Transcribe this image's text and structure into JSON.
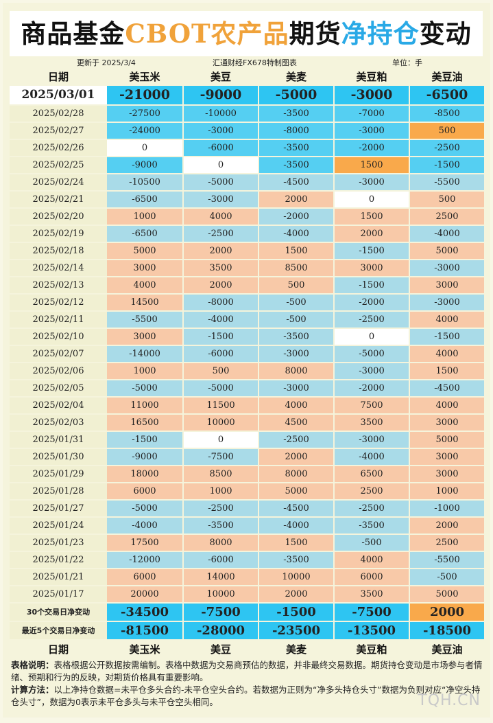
{
  "title": {
    "part1": "商品基金",
    "part2": "CBOT农产品",
    "part3": "期货",
    "part4": "净持仓",
    "part5": "变动"
  },
  "meta": {
    "updated": "更新于 2025/3/4",
    "source": "汇通财经FX678特制图表",
    "unit": "单位：手"
  },
  "header": {
    "date": "日期",
    "cols": [
      "美玉米",
      "美豆",
      "美麦",
      "美豆粕",
      "美豆油"
    ]
  },
  "colors": {
    "pos": "#f8c9a8",
    "neg": "#a9dbe8",
    "zero": "#ffffff",
    "neg_top": "#55cff2",
    "pos_top": "#f9a94b",
    "top_row": "#2ec5f2"
  },
  "rows": [
    {
      "date": "2025/03/01",
      "values": [
        "-21000",
        "-9000",
        "-5000",
        "-3000",
        "-6500"
      ],
      "styles": [
        "top_row",
        "top_row",
        "top_row",
        "top_row",
        "top_row"
      ]
    },
    {
      "date": "2025/02/28",
      "values": [
        "-27500",
        "-10000",
        "-3500",
        "-7000",
        "-8500"
      ],
      "styles": [
        "neg_top",
        "neg_top",
        "neg_top",
        "neg_top",
        "neg_top"
      ]
    },
    {
      "date": "2025/02/27",
      "values": [
        "-24000",
        "-3000",
        "-8000",
        "-3000",
        "500"
      ],
      "styles": [
        "neg_top",
        "neg_top",
        "neg_top",
        "neg_top",
        "pos_top"
      ]
    },
    {
      "date": "2025/02/26",
      "values": [
        "0",
        "-6000",
        "-3500",
        "-2000",
        "-2500"
      ],
      "styles": [
        "zero",
        "neg_top",
        "neg_top",
        "neg_top",
        "neg_top"
      ]
    },
    {
      "date": "2025/02/25",
      "values": [
        "-9000",
        "0",
        "-3500",
        "1500",
        "-1500"
      ],
      "styles": [
        "neg_top",
        "zero",
        "neg_top",
        "pos_top",
        "neg_top"
      ]
    },
    {
      "date": "2025/02/24",
      "values": [
        "-10500",
        "-5000",
        "-4500",
        "-3000",
        "-5500"
      ],
      "styles": []
    },
    {
      "date": "2025/02/21",
      "values": [
        "-6500",
        "-3000",
        "2000",
        "0",
        "500"
      ],
      "styles": []
    },
    {
      "date": "2025/02/20",
      "values": [
        "1000",
        "4000",
        "-2000",
        "1500",
        "2500"
      ],
      "styles": []
    },
    {
      "date": "2025/02/19",
      "values": [
        "-6500",
        "-2500",
        "-4000",
        "2000",
        "-4000"
      ],
      "styles": []
    },
    {
      "date": "2025/02/18",
      "values": [
        "5000",
        "2000",
        "1500",
        "-1500",
        "5000"
      ],
      "styles": []
    },
    {
      "date": "2025/02/14",
      "values": [
        "3000",
        "3500",
        "8500",
        "3000",
        "-3000"
      ],
      "styles": []
    },
    {
      "date": "2025/02/13",
      "values": [
        "4000",
        "2000",
        "500",
        "-1500",
        "3000"
      ],
      "styles": []
    },
    {
      "date": "2025/02/12",
      "values": [
        "14500",
        "-8000",
        "-500",
        "-2000",
        "-3000"
      ],
      "styles": []
    },
    {
      "date": "2025/02/11",
      "values": [
        "-5500",
        "-4000",
        "-500",
        "-2500",
        "4000"
      ],
      "styles": []
    },
    {
      "date": "2025/02/10",
      "values": [
        "3000",
        "-1500",
        "-3500",
        "0",
        "-1500"
      ],
      "styles": []
    },
    {
      "date": "2025/02/07",
      "values": [
        "-14000",
        "-6000",
        "-3000",
        "-5000",
        "4000"
      ],
      "styles": []
    },
    {
      "date": "2025/02/06",
      "values": [
        "1000",
        "500",
        "8000",
        "-3000",
        "1500"
      ],
      "styles": []
    },
    {
      "date": "2025/02/05",
      "values": [
        "-5000",
        "-5000",
        "-3000",
        "-2000",
        "-4500"
      ],
      "styles": []
    },
    {
      "date": "2025/02/04",
      "values": [
        "11000",
        "11500",
        "4000",
        "7500",
        "4000"
      ],
      "styles": []
    },
    {
      "date": "2025/02/03",
      "values": [
        "16500",
        "10000",
        "4500",
        "3500",
        "3000"
      ],
      "styles": []
    },
    {
      "date": "2025/01/31",
      "values": [
        "-1500",
        "0",
        "-2500",
        "-3000",
        "5000"
      ],
      "styles": []
    },
    {
      "date": "2025/01/30",
      "values": [
        "-9000",
        "-7500",
        "2000",
        "-4000",
        "3000"
      ],
      "styles": []
    },
    {
      "date": "2025/01/29",
      "values": [
        "18000",
        "8500",
        "8000",
        "6500",
        "3000"
      ],
      "styles": []
    },
    {
      "date": "2025/01/28",
      "values": [
        "6000",
        "1000",
        "5000",
        "2500",
        "1000"
      ],
      "styles": []
    },
    {
      "date": "2025/01/27",
      "values": [
        "-5000",
        "-2500",
        "-4500",
        "-2500",
        "-1000"
      ],
      "styles": []
    },
    {
      "date": "2025/01/24",
      "values": [
        "-4000",
        "-3500",
        "-4000",
        "-3500",
        "2000"
      ],
      "styles": []
    },
    {
      "date": "2025/01/23",
      "values": [
        "17500",
        "8000",
        "1500",
        "-500",
        "2500"
      ],
      "styles": []
    },
    {
      "date": "2025/01/22",
      "values": [
        "-12000",
        "-6000",
        "-3500",
        "4000",
        "-5500"
      ],
      "styles": []
    },
    {
      "date": "2025/01/21",
      "values": [
        "6000",
        "14000",
        "10000",
        "6000",
        "-500"
      ],
      "styles": []
    },
    {
      "date": "2025/01/17",
      "values": [
        "20000",
        "10000",
        "2000",
        "3500",
        "5000"
      ],
      "styles": []
    }
  ],
  "summary": [
    {
      "label": "30个交易日净变动",
      "values": [
        "-34500",
        "-7500",
        "-1500",
        "-7500",
        "2000"
      ],
      "styles": [
        "top_row",
        "top_row",
        "top_row",
        "top_row",
        "pos_top"
      ]
    },
    {
      "label": "最近5个交易日净变动",
      "values": [
        "-81500",
        "-28000",
        "-23500",
        "-13500",
        "-18500"
      ],
      "styles": [
        "top_row",
        "top_row",
        "top_row",
        "top_row",
        "top_row"
      ]
    }
  ],
  "notes": {
    "label1": "表格说明：",
    "text1": "表格根据公开数据按需编制。表格中数据为交易商预估的数据，并非最终交易数据。期货持仓变动是市场参与者情绪、预期和行为的反映，对期货价格具有重要影响。",
    "label2": "计算方法：",
    "text2": "以上净持仓数据=未平仓多头合约-未平仓空头合约。若数据为正则为“净多头持仓头寸”数据为负则对应“净空头持仓头寸”，数据为0表示未平仓多头与未平仓空头相同。"
  },
  "watermark": "TQH.CN"
}
